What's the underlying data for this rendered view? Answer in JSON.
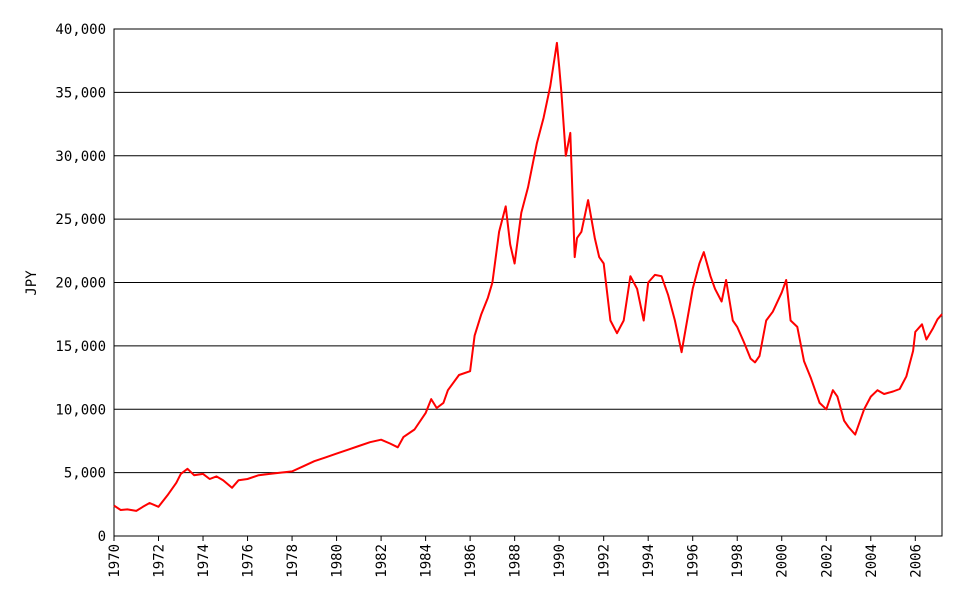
{
  "chart_data": {
    "type": "line",
    "title": "",
    "xlabel": "",
    "ylabel": "JPY",
    "xlim": [
      1970,
      2007.2
    ],
    "ylim": [
      0,
      40000
    ],
    "grid": "horizontal",
    "legend": "none",
    "line_color": "#ff0000",
    "y_ticks": [
      "0",
      "5,000",
      "10,000",
      "15,000",
      "20,000",
      "25,000",
      "30,000",
      "35,000",
      "40,000"
    ],
    "y_tick_values": [
      0,
      5000,
      10000,
      15000,
      20000,
      25000,
      30000,
      35000,
      40000
    ],
    "x_ticks": [
      "1970",
      "1972",
      "1974",
      "1976",
      "1978",
      "1980",
      "1982",
      "1984",
      "1986",
      "1988",
      "1990",
      "1992",
      "1994",
      "1996",
      "1998",
      "2000",
      "2002",
      "2004",
      "2006"
    ],
    "x_tick_values": [
      1970,
      1972,
      1974,
      1976,
      1978,
      1980,
      1982,
      1984,
      1986,
      1988,
      1990,
      1992,
      1994,
      1996,
      1998,
      2000,
      2002,
      2004,
      2006
    ],
    "series": [
      {
        "x": [
          1970.0,
          1970.3,
          1970.6,
          1971.0,
          1971.3,
          1971.6,
          1972.0,
          1972.4,
          1972.8,
          1973.0,
          1973.3,
          1973.6,
          1974.0,
          1974.3,
          1974.6,
          1974.9,
          1975.3,
          1975.6,
          1976.0,
          1976.5,
          1977.0,
          1977.5,
          1978.0,
          1978.5,
          1979.0,
          1979.5,
          1980.0,
          1980.5,
          1981.0,
          1981.5,
          1982.0,
          1982.4,
          1982.75,
          1983.0,
          1983.5,
          1984.0,
          1984.25,
          1984.5,
          1984.8,
          1985.0,
          1985.5,
          1986.0,
          1986.2,
          1986.5,
          1986.8,
          1987.0,
          1987.3,
          1987.6,
          1987.8,
          1988.0,
          1988.3,
          1988.6,
          1989.0,
          1989.3,
          1989.6,
          1989.9,
          1990.0,
          1990.1,
          1990.3,
          1990.5,
          1990.7,
          1990.8,
          1991.0,
          1991.3,
          1991.6,
          1991.8,
          1992.0,
          1992.3,
          1992.6,
          1992.9,
          1993.2,
          1993.5,
          1993.8,
          1994.0,
          1994.3,
          1994.6,
          1994.9,
          1995.2,
          1995.5,
          1995.7,
          1996.0,
          1996.3,
          1996.5,
          1996.8,
          1997.0,
          1997.3,
          1997.5,
          1997.8,
          1998.0,
          1998.3,
          1998.6,
          1998.8,
          1999.0,
          1999.3,
          1999.6,
          2000.0,
          2000.2,
          2000.4,
          2000.7,
          2001.0,
          2001.3,
          2001.7,
          2002.0,
          2002.3,
          2002.5,
          2002.8,
          2003.0,
          2003.3,
          2003.7,
          2004.0,
          2004.3,
          2004.6,
          2005.0,
          2005.3,
          2005.6,
          2005.9,
          2006.0,
          2006.3,
          2006.5,
          2006.8,
          2007.0,
          2007.2
        ],
        "y": [
          2400,
          2050,
          2100,
          1980,
          2300,
          2600,
          2300,
          3200,
          4200,
          4900,
          5300,
          4800,
          4900,
          4500,
          4700,
          4400,
          3800,
          4400,
          4500,
          4800,
          4900,
          5000,
          5100,
          5500,
          5900,
          6200,
          6500,
          6800,
          7100,
          7400,
          7600,
          7300,
          7000,
          7800,
          8400,
          9700,
          10800,
          10100,
          10500,
          11500,
          12700,
          13000,
          15800,
          17500,
          18800,
          20000,
          24000,
          26000,
          23000,
          21500,
          25500,
          27500,
          31000,
          33000,
          35500,
          38900,
          37000,
          35000,
          30000,
          31800,
          22000,
          23500,
          24000,
          26500,
          23500,
          22000,
          21500,
          17000,
          16000,
          17000,
          20500,
          19500,
          17000,
          20000,
          20600,
          20500,
          19000,
          17000,
          14500,
          16500,
          19500,
          21500,
          22400,
          20500,
          19500,
          18500,
          20200,
          17000,
          16500,
          15300,
          14000,
          13700,
          14200,
          17000,
          17700,
          19200,
          20200,
          17000,
          16500,
          13800,
          12500,
          10500,
          10000,
          11500,
          11000,
          9100,
          8600,
          8000,
          10000,
          11000,
          11500,
          11200,
          11400,
          11600,
          12600,
          14600,
          16100,
          16700,
          15500,
          16400,
          17100,
          17500
        ]
      }
    ]
  }
}
